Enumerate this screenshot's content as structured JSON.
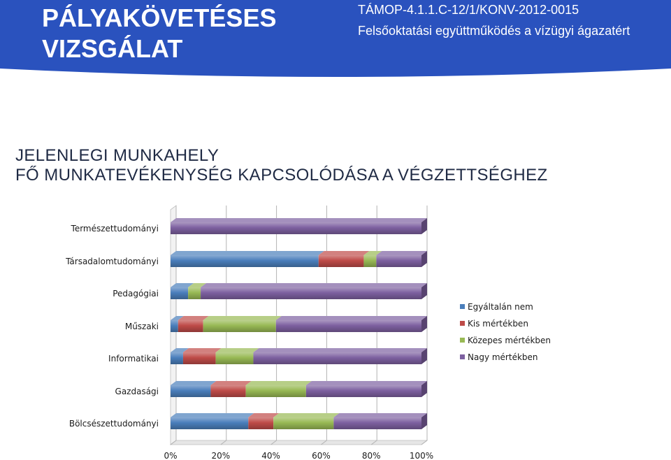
{
  "header": {
    "title_line1": "PÁLYAKÖVETÉSES",
    "title_line2": "VIZSGÁLAT",
    "project_code": "TÁMOP-4.1.1.C-12/1/KONV-2012-0015",
    "project_desc": "Felsőoktatási együttműködés a vízügyi ágazatért",
    "color": "#2a52be"
  },
  "section": {
    "line1": "JELENLEGI MUNKAHELY",
    "line2": "FŐ MUNKATEVÉKENYSÉG KAPCSOLÓDÁSA A VÉGZETTSÉGHEZ"
  },
  "chart_data": {
    "type": "bar",
    "orientation": "horizontal",
    "stacked": "percent",
    "categories": [
      "Természettudományi",
      "Társadalomtudományi",
      "Pedagógiai",
      "Műszaki",
      "Informatikai",
      "Gazdasági",
      "Bölcsészettudományi"
    ],
    "series": [
      {
        "name": "Egyáltalán nem",
        "color": "#4a7ebb",
        "values": [
          0,
          59,
          7,
          3,
          5,
          16,
          31
        ]
      },
      {
        "name": "Kis mértékben",
        "color": "#be4b48",
        "values": [
          0,
          18,
          0,
          10,
          13,
          14,
          10
        ]
      },
      {
        "name": "Közepes mértékben",
        "color": "#98b954",
        "values": [
          0,
          5,
          5,
          29,
          15,
          24,
          24
        ]
      },
      {
        "name": "Nagy mértékben",
        "color": "#7d60a0",
        "values": [
          100,
          18,
          88,
          58,
          67,
          46,
          35
        ]
      }
    ],
    "x_ticks": [
      "0%",
      "20%",
      "40%",
      "60%",
      "80%",
      "100%"
    ],
    "xlim": [
      0,
      100
    ],
    "grid": "vertical",
    "legend": "right"
  }
}
